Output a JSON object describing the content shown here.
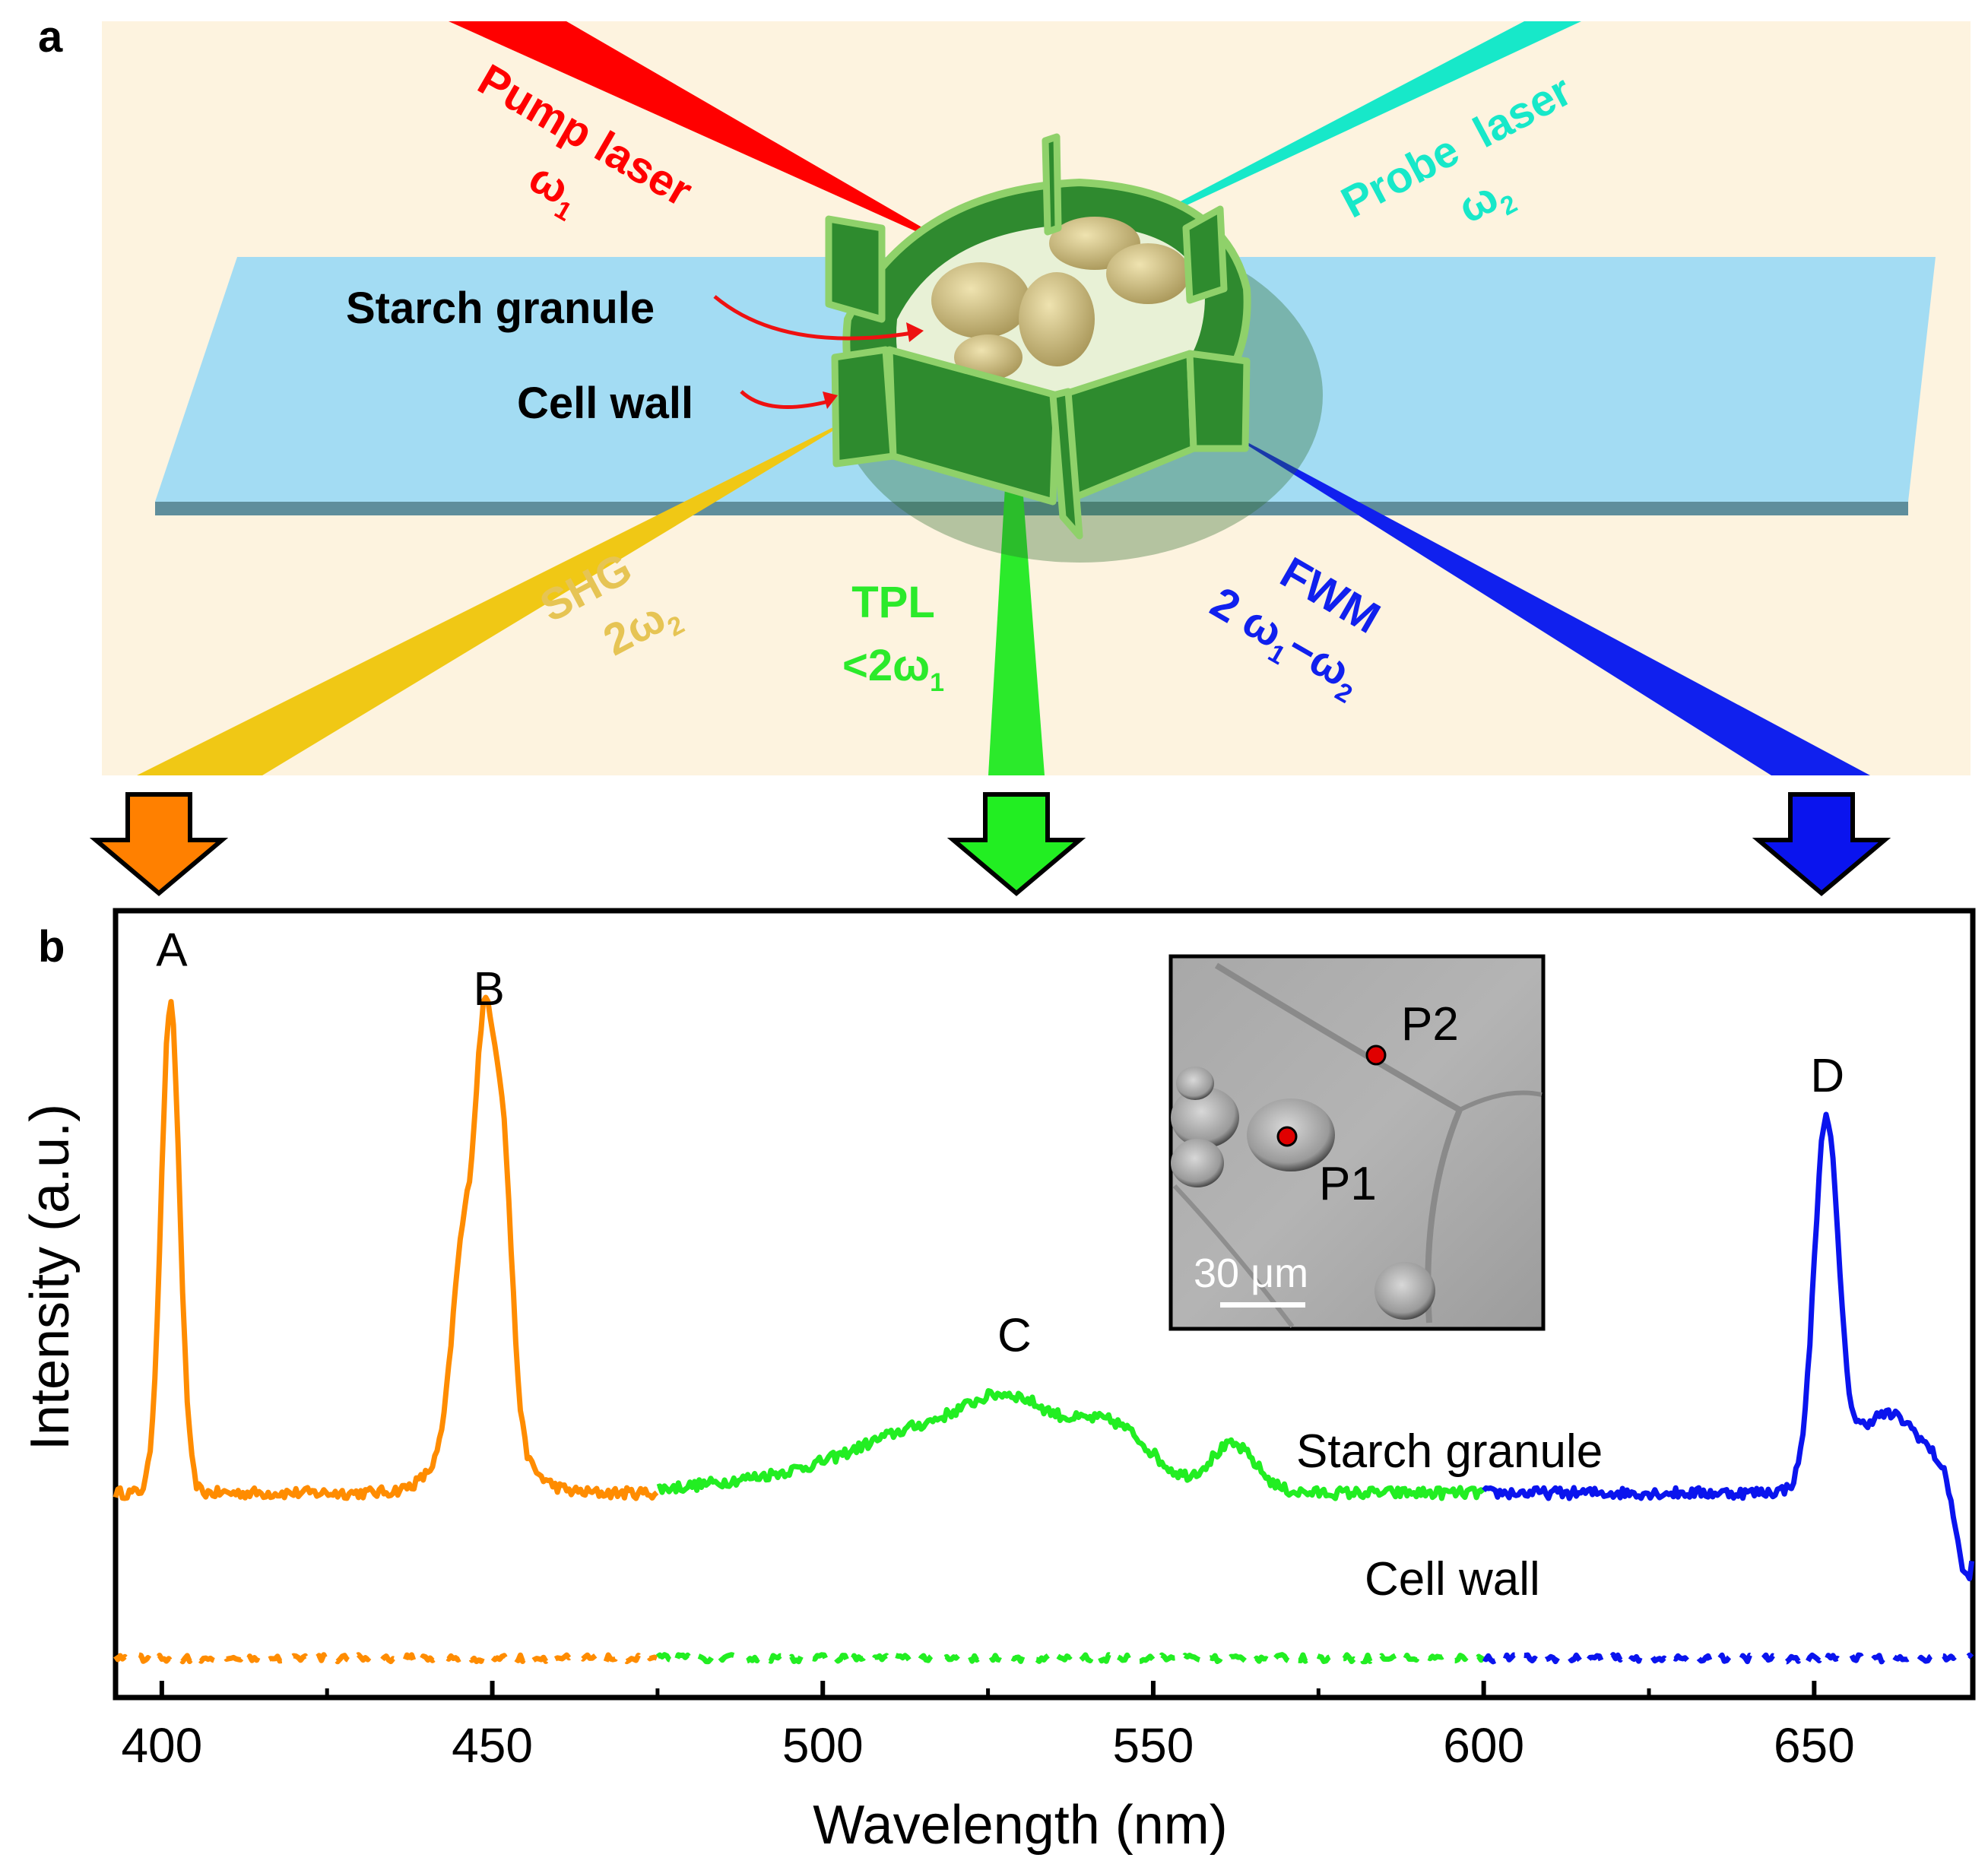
{
  "panel_a": {
    "label": "a",
    "pump": {
      "line1": "Pump laser",
      "omega": "ω",
      "sub": "1"
    },
    "probe": {
      "line1": "Probe  laser",
      "omega": "ω",
      "sub": "2"
    },
    "starch_label": "Starch granule",
    "cellwall_label": "Cell wall",
    "shg": {
      "line1": "SHG",
      "coef": "2ω",
      "sub": "2"
    },
    "tpl": {
      "line1": "TPL",
      "prefix": "<2ω",
      "sub": "1"
    },
    "fwm": {
      "line1": "FWM",
      "coef": "2 ω",
      "sub1": "1",
      "minus": "−ω",
      "sub2": "2"
    },
    "colors": {
      "background": "#fdf3df",
      "slab": "#a3dcf3",
      "pump": "#ff0000",
      "probe": "#17e8c9",
      "shg": "#f0c815",
      "tpl": "#2bea2b",
      "fwm": "#1020ee",
      "cell": "#2f8a2f",
      "granule": "#cdbf82"
    }
  },
  "arrows": {
    "left_color": "#ff8000",
    "middle_color": "#22ee22",
    "right_color": "#0a14ee"
  },
  "inset": {
    "p1": "P1",
    "p2": "P2",
    "scale": "30 μm",
    "marker_color": "#e00000"
  },
  "chart_data": {
    "type": "line",
    "panel_label": "b",
    "xlabel": "Wavelength (nm)",
    "ylabel": "Intensity (a.u.)",
    "xlim": [
      393,
      674
    ],
    "ylim": [
      0,
      100
    ],
    "xticks": [
      400,
      450,
      500,
      550,
      600,
      650
    ],
    "xtick_labels": [
      "400",
      "450",
      "500",
      "550",
      "600",
      "650"
    ],
    "peak_labels": [
      {
        "text": "A",
        "x": 401.5,
        "y": 93
      },
      {
        "text": "B",
        "x": 449.5,
        "y": 88
      },
      {
        "text": "C",
        "x": 529,
        "y": 44
      },
      {
        "text": "D",
        "x": 652,
        "y": 77
      }
    ],
    "trace_labels": {
      "starch": "Starch granule",
      "cellwall": "Cell wall"
    },
    "series": [
      {
        "name": "Starch granule",
        "style": "solid",
        "segments": [
          {
            "color": "#ff8c00",
            "x_range": [
              393,
              475
            ],
            "baseline": 26,
            "peaks": [
              {
                "center": 401.3,
                "height": 62,
                "width": 1.4
              },
              {
                "center": 445.5,
                "height": 23,
                "width": 1.6
              },
              {
                "center": 448.8,
                "height": 45,
                "width": 1.4
              },
              {
                "center": 451.6,
                "height": 35,
                "width": 1.4
              },
              {
                "center": 448.5,
                "height": 10,
                "width": 5.0
              }
            ]
          },
          {
            "color": "#22ee22",
            "x_range": [
              475,
              600
            ],
            "baseline": 26,
            "peaks": [
              {
                "center": 515,
                "height": 6,
                "width": 9
              },
              {
                "center": 529,
                "height": 10,
                "width": 7
              },
              {
                "center": 544,
                "height": 8,
                "width": 6
              },
              {
                "center": 562,
                "height": 6,
                "width": 3.5
              },
              {
                "center": 500,
                "height": 2.5,
                "width": 14
              }
            ]
          },
          {
            "color": "#0a14ee",
            "x_range": [
              600,
              674
            ],
            "baseline": 26,
            "peaks": [
              {
                "center": 651.8,
                "height": 45,
                "width": 1.8
              },
              {
                "center": 661,
                "height": 10,
                "width": 6
              },
              {
                "center": 673,
                "height": -12,
                "width": 1.5
              }
            ]
          }
        ]
      },
      {
        "name": "Cell wall",
        "style": "dashed",
        "segments": [
          {
            "color": "#ff8c00",
            "x_range": [
              393,
              475
            ],
            "baseline": 5
          },
          {
            "color": "#22ee22",
            "x_range": [
              475,
              600
            ],
            "baseline": 5
          },
          {
            "color": "#0a14ee",
            "x_range": [
              600,
              674
            ],
            "baseline": 5
          }
        ]
      }
    ]
  }
}
